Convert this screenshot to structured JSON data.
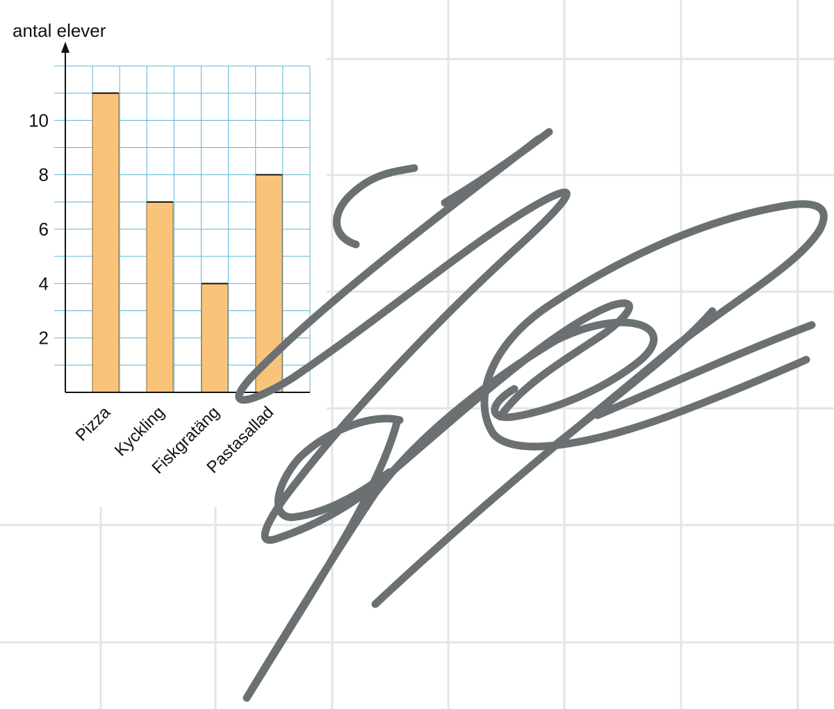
{
  "chart_data": {
    "type": "bar",
    "categories": [
      "Pizza",
      "Kyckling",
      "Fiskgratäng",
      "Pastasallad"
    ],
    "values": [
      11,
      7,
      4,
      8
    ],
    "ylabel": "antal elever",
    "xlabel": "",
    "ylim": [
      0,
      12
    ],
    "yticks": [
      "2",
      "4",
      "6",
      "8",
      "10"
    ],
    "grid": true,
    "colors": {
      "bar": "#f9c47a",
      "bar_edge": "#8a6a3a",
      "grid": "#5ab4d6",
      "axis": "#111111"
    }
  },
  "background": {
    "grid_color": "#e4e4e4"
  },
  "annotation": {
    "kind": "freehand-scribble",
    "color": "#6b7073"
  }
}
